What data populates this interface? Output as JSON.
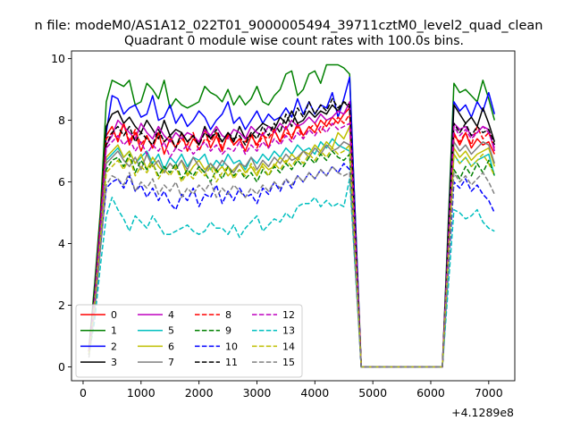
{
  "chart_data": {
    "type": "line",
    "suptitle": "n file: modeM0/AS1A12_022T01_9000005494_39711cztM0_level2_quad_clean",
    "title": "Quadrant 0 module wise count rates with 100.0s bins.",
    "xlabel": "",
    "ylabel": "",
    "x_offset_label": "+4.1289e8",
    "xlim": [
      -200,
      7450
    ],
    "ylim": [
      -0.45,
      10.25
    ],
    "x_ticks": [
      0,
      1000,
      2000,
      3000,
      4000,
      5000,
      6000,
      7000
    ],
    "y_ticks": [
      0,
      2,
      4,
      6,
      8,
      10
    ],
    "grid": false,
    "legend": {
      "position": "lower-left",
      "columns": 4
    },
    "x": [
      100,
      200,
      300,
      400,
      500,
      600,
      700,
      800,
      900,
      1000,
      1100,
      1200,
      1300,
      1400,
      1500,
      1600,
      1700,
      1800,
      1900,
      2000,
      2100,
      2200,
      2300,
      2400,
      2500,
      2600,
      2700,
      2800,
      2900,
      3000,
      3100,
      3200,
      3300,
      3400,
      3500,
      3600,
      3700,
      3800,
      3900,
      4000,
      4100,
      4200,
      4300,
      4400,
      4500,
      4600,
      4800,
      6200,
      6400,
      6500,
      6600,
      6700,
      6800,
      6900,
      7000,
      7100
    ],
    "series": [
      {
        "name": "0",
        "color": "#ff0000",
        "style": "solid",
        "values": [
          0.5,
          2.5,
          4.9,
          7.5,
          7.8,
          7.3,
          7.9,
          7.2,
          7.6,
          7.0,
          7.5,
          7.1,
          7.6,
          6.9,
          7.4,
          7.1,
          7.6,
          7.0,
          7.4,
          7.2,
          7.7,
          7.1,
          7.5,
          7.0,
          7.6,
          7.2,
          7.4,
          7.0,
          7.5,
          7.2,
          7.6,
          7.1,
          7.7,
          7.3,
          7.8,
          7.4,
          7.9,
          7.5,
          7.8,
          7.6,
          8.0,
          7.8,
          8.1,
          7.9,
          8.2,
          8.4,
          0,
          0,
          7.6,
          7.2,
          7.6,
          7.1,
          7.4,
          7.2,
          7.3,
          6.9
        ]
      },
      {
        "name": "1",
        "color": "#008000",
        "style": "solid",
        "values": [
          0.6,
          2.7,
          5.1,
          8.6,
          9.3,
          9.2,
          9.1,
          9.3,
          8.5,
          8.6,
          9.2,
          9.0,
          8.7,
          9.3,
          8.4,
          8.7,
          8.5,
          8.4,
          8.5,
          8.6,
          9.1,
          8.9,
          8.8,
          8.6,
          9.0,
          8.5,
          8.8,
          8.5,
          8.7,
          9.1,
          8.6,
          8.5,
          8.8,
          9.0,
          9.5,
          9.6,
          8.8,
          9.0,
          9.5,
          9.6,
          9.2,
          9.8,
          9.8,
          9.8,
          9.7,
          9.5,
          0,
          0,
          9.2,
          8.9,
          9.0,
          8.8,
          8.6,
          9.3,
          8.7,
          8.0
        ]
      },
      {
        "name": "2",
        "color": "#0000ff",
        "style": "solid",
        "values": [
          0.5,
          2.4,
          4.8,
          7.6,
          8.8,
          8.7,
          8.2,
          8.4,
          8.5,
          8.1,
          8.2,
          8.8,
          8.0,
          8.1,
          8.5,
          7.9,
          8.2,
          7.8,
          8.0,
          8.3,
          8.1,
          7.7,
          8.0,
          8.2,
          8.6,
          7.9,
          8.1,
          7.7,
          8.0,
          8.3,
          7.9,
          8.2,
          8.0,
          8.1,
          8.4,
          8.1,
          8.7,
          8.2,
          8.6,
          8.2,
          8.5,
          8.4,
          8.9,
          8.1,
          8.7,
          9.4,
          0,
          0,
          8.6,
          8.3,
          8.5,
          8.1,
          8.6,
          8.3,
          8.9,
          8.2
        ]
      },
      {
        "name": "3",
        "color": "#000000",
        "style": "solid",
        "values": [
          0.5,
          2.4,
          4.7,
          7.8,
          8.2,
          8.3,
          7.9,
          8.1,
          7.8,
          7.6,
          8.0,
          7.7,
          7.4,
          8.0,
          7.5,
          7.7,
          7.6,
          7.3,
          7.5,
          7.2,
          7.8,
          7.4,
          7.6,
          7.3,
          7.6,
          7.3,
          7.8,
          7.4,
          7.5,
          7.7,
          7.9,
          7.8,
          7.7,
          8.1,
          7.9,
          8.3,
          7.9,
          8.0,
          8.3,
          8.1,
          8.3,
          8.2,
          8.5,
          8.3,
          8.6,
          8.4,
          0,
          0,
          8.5,
          8.2,
          7.9,
          8.1,
          7.8,
          8.4,
          7.9,
          7.3
        ]
      },
      {
        "name": "4",
        "color": "#bf00bf",
        "style": "solid",
        "values": [
          0.5,
          2.3,
          4.6,
          7.2,
          7.5,
          8.0,
          7.8,
          7.6,
          7.4,
          7.9,
          7.6,
          7.4,
          7.8,
          7.5,
          7.3,
          7.6,
          7.4,
          7.6,
          7.5,
          7.3,
          7.7,
          7.5,
          7.8,
          7.5,
          7.4,
          7.7,
          7.6,
          7.4,
          7.8,
          7.6,
          7.5,
          7.8,
          7.6,
          7.9,
          7.7,
          8.0,
          7.8,
          7.9,
          8.1,
          7.9,
          8.2,
          8.0,
          8.1,
          8.3,
          8.2,
          8.6,
          0,
          0,
          7.9,
          7.7,
          7.8,
          7.5,
          7.6,
          7.8,
          7.7,
          7.0
        ]
      },
      {
        "name": "5",
        "color": "#00bfbf",
        "style": "solid",
        "values": [
          0.4,
          2.1,
          4.3,
          6.7,
          6.9,
          7.1,
          6.8,
          7.0,
          6.6,
          6.8,
          7.0,
          6.6,
          6.9,
          6.4,
          6.8,
          6.6,
          6.9,
          6.5,
          6.8,
          6.7,
          6.9,
          6.4,
          6.7,
          6.5,
          6.9,
          6.6,
          6.7,
          6.4,
          6.8,
          6.6,
          6.9,
          6.7,
          7.0,
          6.8,
          7.1,
          6.9,
          7.2,
          7.0,
          7.1,
          6.9,
          7.3,
          7.1,
          7.4,
          7.2,
          7.1,
          7.0,
          0,
          0,
          6.9,
          6.6,
          6.8,
          6.5,
          6.7,
          6.8,
          6.9,
          6.2
        ]
      },
      {
        "name": "6",
        "color": "#bfbf00",
        "style": "solid",
        "values": [
          0.4,
          2.0,
          4.2,
          6.8,
          7.0,
          7.2,
          6.8,
          7.0,
          6.6,
          6.9,
          6.4,
          6.8,
          6.5,
          6.3,
          6.6,
          6.4,
          6.7,
          6.2,
          6.5,
          6.7,
          6.4,
          6.6,
          6.3,
          6.5,
          6.2,
          6.4,
          6.6,
          6.3,
          6.5,
          6.2,
          6.6,
          6.4,
          6.5,
          6.8,
          6.6,
          6.9,
          6.7,
          7.0,
          6.9,
          7.2,
          7.0,
          7.3,
          7.1,
          7.6,
          7.4,
          7.8,
          0,
          0,
          7.1,
          6.8,
          7.0,
          6.7,
          6.9,
          7.0,
          7.1,
          6.5
        ]
      },
      {
        "name": "7",
        "color": "#808080",
        "style": "solid",
        "values": [
          0.4,
          2.1,
          4.2,
          6.6,
          6.8,
          7.0,
          6.7,
          6.5,
          6.8,
          6.4,
          6.9,
          6.5,
          6.7,
          6.3,
          6.6,
          6.4,
          6.7,
          6.4,
          6.8,
          6.5,
          6.3,
          6.6,
          6.4,
          6.7,
          6.5,
          6.3,
          6.6,
          6.5,
          6.8,
          6.4,
          6.7,
          6.5,
          6.8,
          6.6,
          6.9,
          6.7,
          6.8,
          7.0,
          6.8,
          7.1,
          6.9,
          7.2,
          7.0,
          7.1,
          7.3,
          7.2,
          0,
          0,
          7.3,
          7.0,
          7.2,
          6.9,
          7.1,
          7.3,
          7.2,
          6.6
        ]
      },
      {
        "name": "8",
        "color": "#ff0000",
        "style": "dashed",
        "values": [
          0.5,
          2.3,
          4.8,
          7.4,
          7.6,
          7.4,
          7.9,
          7.3,
          7.7,
          7.2,
          7.5,
          7.1,
          7.6,
          7.3,
          7.5,
          7.1,
          7.4,
          7.2,
          7.6,
          7.0,
          7.4,
          7.3,
          7.6,
          7.1,
          7.5,
          7.2,
          7.4,
          7.3,
          7.6,
          7.1,
          7.5,
          7.4,
          7.7,
          7.3,
          7.6,
          7.5,
          7.8,
          7.4,
          7.7,
          7.9,
          7.6,
          8.0,
          7.8,
          8.1,
          7.9,
          8.2,
          0,
          0,
          7.5,
          7.3,
          7.6,
          7.2,
          7.8,
          7.4,
          7.6,
          7.1
        ]
      },
      {
        "name": "9",
        "color": "#008000",
        "style": "dashed",
        "values": [
          0.4,
          2.0,
          4.1,
          6.4,
          6.7,
          6.8,
          6.5,
          6.9,
          6.3,
          6.7,
          6.4,
          6.6,
          6.2,
          6.5,
          6.3,
          6.6,
          6.1,
          6.4,
          6.2,
          6.5,
          6.3,
          6.0,
          6.4,
          6.1,
          6.5,
          6.2,
          6.4,
          6.1,
          6.3,
          6.0,
          6.4,
          6.2,
          6.5,
          6.3,
          6.6,
          6.4,
          6.7,
          6.5,
          6.8,
          6.6,
          6.9,
          6.7,
          7.0,
          6.8,
          6.7,
          6.9,
          0,
          0,
          6.4,
          6.1,
          6.5,
          6.2,
          6.6,
          6.3,
          6.7,
          6.2
        ]
      },
      {
        "name": "10",
        "color": "#0000ff",
        "style": "dashed",
        "values": [
          0.4,
          1.9,
          3.9,
          5.8,
          6.0,
          6.1,
          5.8,
          6.2,
          5.7,
          5.9,
          5.5,
          5.8,
          5.4,
          5.7,
          5.3,
          5.1,
          5.6,
          5.4,
          5.8,
          5.2,
          5.6,
          5.5,
          5.9,
          5.3,
          5.7,
          5.4,
          5.8,
          5.5,
          5.6,
          5.3,
          5.8,
          5.6,
          6.0,
          5.7,
          6.1,
          5.8,
          6.2,
          6.0,
          6.3,
          6.1,
          6.4,
          6.2,
          6.5,
          6.3,
          6.6,
          6.4,
          0,
          0,
          6.0,
          5.8,
          6.1,
          5.7,
          5.9,
          5.6,
          5.4,
          5.0
        ]
      },
      {
        "name": "11",
        "color": "#000000",
        "style": "dashed",
        "values": [
          0.5,
          2.3,
          4.6,
          7.2,
          7.6,
          7.8,
          7.5,
          7.8,
          7.3,
          7.6,
          7.4,
          7.2,
          7.7,
          7.3,
          7.5,
          7.1,
          7.6,
          7.3,
          7.5,
          7.2,
          7.6,
          7.4,
          7.7,
          7.3,
          7.6,
          7.4,
          7.5,
          7.2,
          7.6,
          7.4,
          7.8,
          7.5,
          7.9,
          7.6,
          8.2,
          7.8,
          8.4,
          8.1,
          8.6,
          8.2,
          8.5,
          8.3,
          8.7,
          8.4,
          8.6,
          8.5,
          0,
          0,
          7.9,
          7.6,
          7.9,
          7.5,
          7.8,
          7.6,
          7.7,
          7.2
        ]
      },
      {
        "name": "12",
        "color": "#bf00bf",
        "style": "dashed",
        "values": [
          0.5,
          2.2,
          4.5,
          7.1,
          7.3,
          7.5,
          7.2,
          7.4,
          7.0,
          7.3,
          6.9,
          7.2,
          7.0,
          7.3,
          6.8,
          7.1,
          7.0,
          7.2,
          6.9,
          7.1,
          7.3,
          7.0,
          7.2,
          6.9,
          7.1,
          7.0,
          7.3,
          6.9,
          7.2,
          7.0,
          7.3,
          7.1,
          7.4,
          7.2,
          7.5,
          7.3,
          7.6,
          7.4,
          7.7,
          7.5,
          7.8,
          7.6,
          7.9,
          7.7,
          7.8,
          7.9,
          0,
          0,
          7.8,
          7.5,
          7.7,
          7.4,
          7.6,
          7.8,
          7.6,
          7.1
        ]
      },
      {
        "name": "13",
        "color": "#00bfbf",
        "style": "dashed",
        "values": [
          0.4,
          1.5,
          3.3,
          4.9,
          5.5,
          5.1,
          4.8,
          4.4,
          4.9,
          4.7,
          4.5,
          4.9,
          4.6,
          4.3,
          4.3,
          4.4,
          4.5,
          4.6,
          4.4,
          4.3,
          4.4,
          4.7,
          4.5,
          4.5,
          4.3,
          4.6,
          4.2,
          4.5,
          4.7,
          4.9,
          4.4,
          4.6,
          4.8,
          4.7,
          5.0,
          4.8,
          5.2,
          5.3,
          5.3,
          5.5,
          5.2,
          5.4,
          5.2,
          5.3,
          5.2,
          6.1,
          0,
          0,
          5.1,
          5.0,
          4.8,
          4.9,
          5.1,
          4.7,
          4.5,
          4.4
        ]
      },
      {
        "name": "14",
        "color": "#bfbf00",
        "style": "dashed",
        "values": [
          0.4,
          2.0,
          4.1,
          6.3,
          6.5,
          6.7,
          6.4,
          6.8,
          6.2,
          6.5,
          6.3,
          6.6,
          6.1,
          6.4,
          6.2,
          6.5,
          6.0,
          6.3,
          6.1,
          6.4,
          6.2,
          6.5,
          6.0,
          6.3,
          6.5,
          6.1,
          6.4,
          6.2,
          6.6,
          6.3,
          6.5,
          6.2,
          6.6,
          6.4,
          6.7,
          6.5,
          6.8,
          6.6,
          6.9,
          6.7,
          7.0,
          6.8,
          7.1,
          6.9,
          7.0,
          7.2,
          0,
          0,
          6.9,
          6.6,
          6.8,
          6.5,
          6.7,
          6.9,
          6.6,
          6.2
        ]
      },
      {
        "name": "15",
        "color": "#808080",
        "style": "dashed",
        "values": [
          0.3,
          1.8,
          3.8,
          5.9,
          6.2,
          6.1,
          5.9,
          6.3,
          5.7,
          6.0,
          5.8,
          6.1,
          5.6,
          5.9,
          5.7,
          6.0,
          5.5,
          5.8,
          5.6,
          5.9,
          5.7,
          6.0,
          5.5,
          5.8,
          5.6,
          5.9,
          5.7,
          5.5,
          5.8,
          5.6,
          5.9,
          5.7,
          6.0,
          5.8,
          6.1,
          5.9,
          6.2,
          6.0,
          6.3,
          6.1,
          6.4,
          6.2,
          6.5,
          6.3,
          6.2,
          6.3,
          0,
          0,
          6.3,
          6.0,
          6.2,
          5.9,
          6.1,
          6.3,
          6.0,
          5.6
        ]
      }
    ]
  }
}
